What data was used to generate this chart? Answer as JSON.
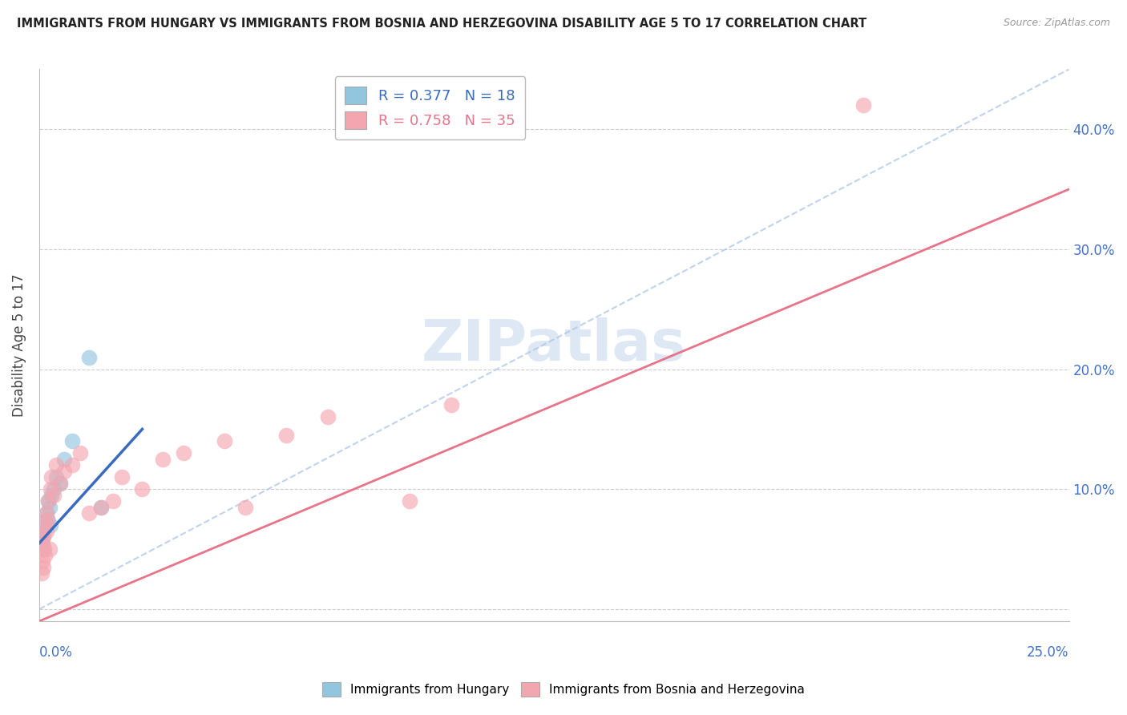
{
  "title": "IMMIGRANTS FROM HUNGARY VS IMMIGRANTS FROM BOSNIA AND HERZEGOVINA DISABILITY AGE 5 TO 17 CORRELATION CHART",
  "source": "Source: ZipAtlas.com",
  "ylabel": "Disability Age 5 to 17",
  "xlim": [
    0.0,
    25.0
  ],
  "ylim": [
    -1.0,
    45.0
  ],
  "yticks": [
    0,
    10,
    20,
    30,
    40
  ],
  "ytick_labels": [
    "",
    "10.0%",
    "20.0%",
    "30.0%",
    "40.0%"
  ],
  "hungary_R": 0.377,
  "hungary_N": 18,
  "bosnia_R": 0.758,
  "bosnia_N": 35,
  "hungary_color": "#92c5de",
  "bosnia_color": "#f4a6b0",
  "hungary_line_color": "#3a6bbf",
  "bosnia_line_color": "#e8748a",
  "ref_line_color": "#b0c8e8",
  "watermark_color": "#d0dff0",
  "background_color": "#ffffff",
  "hungary_x": [
    0.05,
    0.08,
    0.1,
    0.12,
    0.15,
    0.18,
    0.2,
    0.22,
    0.25,
    0.28,
    0.3,
    0.35,
    0.4,
    0.5,
    0.6,
    0.8,
    1.2,
    1.5
  ],
  "hungary_y": [
    5.5,
    6.0,
    5.0,
    6.5,
    7.0,
    8.0,
    7.5,
    9.0,
    8.5,
    7.0,
    9.5,
    10.0,
    11.0,
    10.5,
    12.5,
    14.0,
    21.0,
    8.5
  ],
  "bosnia_x": [
    0.05,
    0.07,
    0.08,
    0.09,
    0.1,
    0.12,
    0.13,
    0.15,
    0.17,
    0.18,
    0.2,
    0.22,
    0.25,
    0.28,
    0.3,
    0.35,
    0.4,
    0.5,
    0.6,
    0.8,
    1.0,
    1.2,
    1.5,
    1.8,
    2.0,
    2.5,
    3.0,
    3.5,
    4.5,
    5.0,
    6.0,
    7.0,
    9.0,
    10.0,
    20.0
  ],
  "bosnia_y": [
    3.0,
    4.0,
    5.5,
    3.5,
    6.0,
    5.0,
    4.5,
    7.0,
    6.5,
    8.0,
    7.5,
    9.0,
    5.0,
    10.0,
    11.0,
    9.5,
    12.0,
    10.5,
    11.5,
    12.0,
    13.0,
    8.0,
    8.5,
    9.0,
    11.0,
    10.0,
    12.5,
    13.0,
    14.0,
    8.5,
    14.5,
    16.0,
    9.0,
    17.0,
    42.0
  ],
  "hungary_line_x0": 0.0,
  "hungary_line_y0": 5.5,
  "hungary_line_x1": 2.5,
  "hungary_line_y1": 15.0,
  "bosnia_line_x0": 0.0,
  "bosnia_line_y0": -1.0,
  "bosnia_line_x1": 25.0,
  "bosnia_line_y1": 35.0,
  "ref_line_x0": 0.0,
  "ref_line_y0": 0.0,
  "ref_line_x1": 25.0,
  "ref_line_y1": 45.0
}
